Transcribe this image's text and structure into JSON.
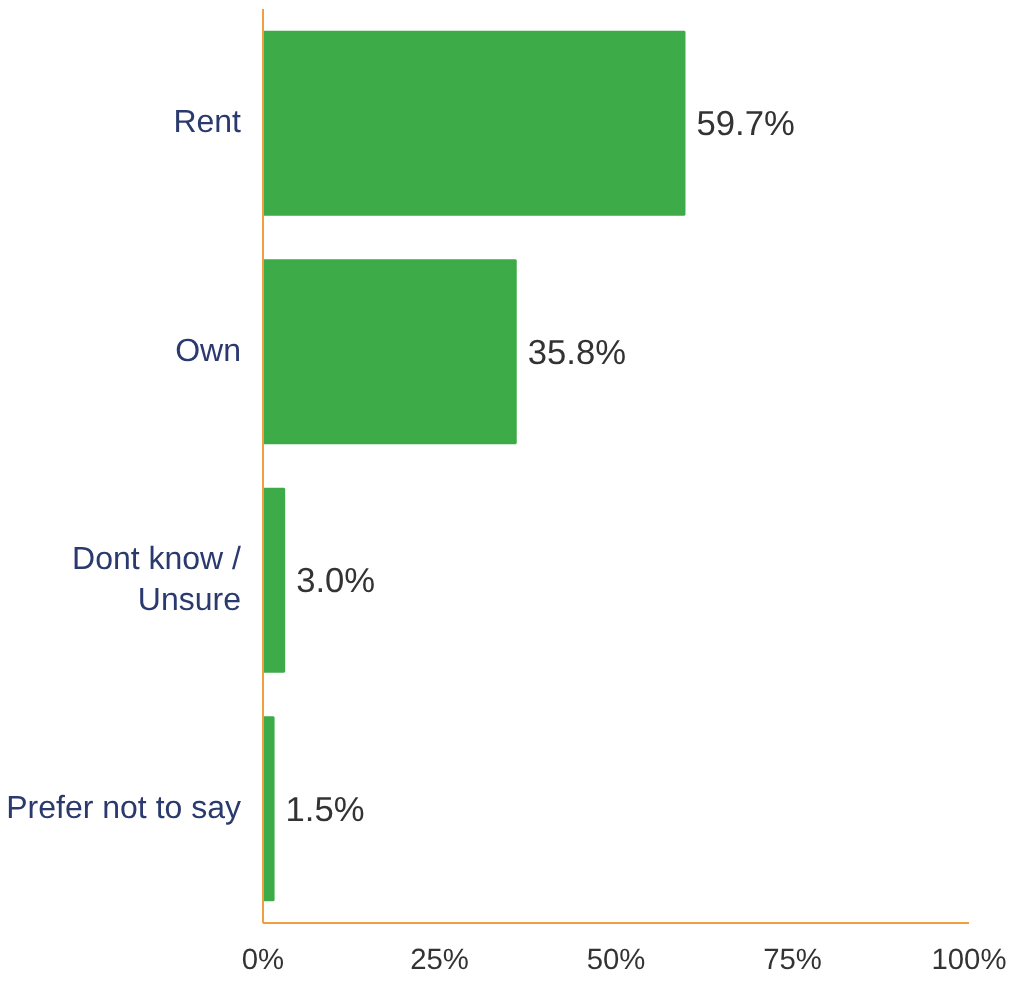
{
  "chart_data": {
    "type": "bar",
    "orientation": "horizontal",
    "categories": [
      "Rent",
      "Own",
      "Dont know /\nUnsure",
      "Prefer not to say"
    ],
    "values": [
      59.7,
      35.8,
      3.0,
      1.5
    ],
    "color": "#3dab47",
    "xlim": [
      0,
      100
    ],
    "xticks": [
      {
        "value": 0,
        "label": "0%"
      },
      {
        "value": 25,
        "label": "25%"
      },
      {
        "value": 50,
        "label": "50%"
      },
      {
        "value": 75,
        "label": "75%"
      },
      {
        "value": 100,
        "label": "100%"
      }
    ],
    "value_labels": [
      "59.7%",
      "35.8%",
      "3.0%",
      "1.5%"
    ],
    "grid": false
  }
}
